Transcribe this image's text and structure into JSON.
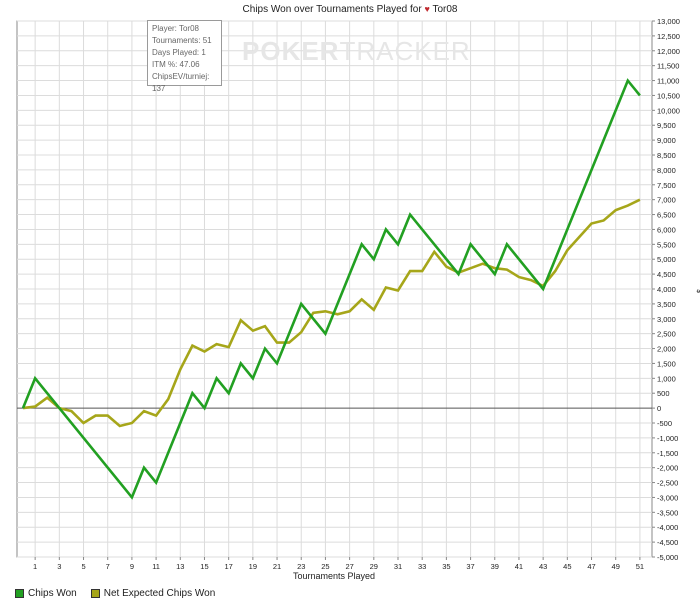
{
  "title": "Chips Won over Tournaments Played for",
  "title_player": "Tor08",
  "info_box": {
    "player": "Player: Tor08",
    "tournaments": "Tournaments: 51",
    "days_played": "Days Played: 1",
    "itm": "ITM %: 47.06",
    "chipsev": "ChipsEV/turniej: 137"
  },
  "watermark": {
    "part1": "POKER",
    "part2": "TRACKER"
  },
  "colors": {
    "chips_won": "#22a022",
    "net_expected": "#a6a61a",
    "grid": "#dcdcdc",
    "zero_line": "#555555"
  },
  "chart_data": {
    "type": "line",
    "xlabel": "Tournaments Played",
    "ylabel": "$",
    "xlim": [
      -0.5,
      52
    ],
    "ylim": [
      -5000,
      13000
    ],
    "x_ticks": [
      1,
      3,
      5,
      7,
      9,
      11,
      13,
      15,
      17,
      19,
      21,
      23,
      25,
      27,
      29,
      31,
      33,
      35,
      37,
      39,
      41,
      43,
      45,
      47,
      49,
      51
    ],
    "y_ticks": [
      -5000,
      -4500,
      -4000,
      -3500,
      -3000,
      -2500,
      -2000,
      -1500,
      -1000,
      -500,
      0,
      500,
      1000,
      1500,
      2000,
      2500,
      3000,
      3500,
      4000,
      4500,
      5000,
      5500,
      6000,
      6500,
      7000,
      7500,
      8000,
      8500,
      9000,
      9500,
      10000,
      10500,
      11000,
      11500,
      12000,
      12500,
      13000
    ],
    "y_tick_labels": [
      "-5,000",
      "-4,500",
      "-4,000",
      "-3,500",
      "-3,000",
      "-2,500",
      "-2,000",
      "-1,500",
      "-1,000",
      "-500",
      "0",
      "500",
      "1,000",
      "1,500",
      "2,000",
      "2,500",
      "3,000",
      "3,500",
      "4,000",
      "4,500",
      "5,000",
      "5,500",
      "6,000",
      "6,500",
      "7,000",
      "7,500",
      "8,000",
      "8,500",
      "9,000",
      "9,500",
      "10,000",
      "10,500",
      "11,000",
      "11,500",
      "12,000",
      "12,500",
      "13,000"
    ],
    "grid": true,
    "legend_position": "bottom-left",
    "series": [
      {
        "name": "Chips Won",
        "color": "#22a022",
        "points": [
          [
            0,
            0
          ],
          [
            1,
            1000
          ],
          [
            2,
            500
          ],
          [
            3,
            0
          ],
          [
            9,
            -3000
          ],
          [
            10,
            -2000
          ],
          [
            11,
            -2500
          ],
          [
            14,
            500
          ],
          [
            15,
            0
          ],
          [
            16,
            1000
          ],
          [
            17,
            500
          ],
          [
            18,
            1500
          ],
          [
            19,
            1000
          ],
          [
            20,
            2000
          ],
          [
            21,
            1500
          ],
          [
            23,
            3500
          ],
          [
            25,
            2500
          ],
          [
            28,
            5500
          ],
          [
            29,
            5000
          ],
          [
            30,
            6000
          ],
          [
            31,
            5500
          ],
          [
            32,
            6500
          ],
          [
            36,
            4500
          ],
          [
            37,
            5500
          ],
          [
            39,
            4500
          ],
          [
            40,
            5500
          ],
          [
            43,
            4000
          ],
          [
            50,
            11000
          ],
          [
            51,
            10500
          ]
        ]
      },
      {
        "name": "Net Expected Chips Won",
        "color": "#a6a61a",
        "points": [
          [
            0,
            0
          ],
          [
            1,
            50
          ],
          [
            2,
            350
          ],
          [
            3,
            0
          ],
          [
            4,
            -100
          ],
          [
            5,
            -500
          ],
          [
            6,
            -250
          ],
          [
            7,
            -250
          ],
          [
            8,
            -600
          ],
          [
            9,
            -500
          ],
          [
            10,
            -100
          ],
          [
            11,
            -250
          ],
          [
            12,
            300
          ],
          [
            13,
            1300
          ],
          [
            14,
            2100
          ],
          [
            15,
            1900
          ],
          [
            16,
            2150
          ],
          [
            17,
            2050
          ],
          [
            18,
            2950
          ],
          [
            19,
            2600
          ],
          [
            20,
            2750
          ],
          [
            21,
            2200
          ],
          [
            22,
            2200
          ],
          [
            23,
            2550
          ],
          [
            24,
            3200
          ],
          [
            25,
            3250
          ],
          [
            26,
            3150
          ],
          [
            27,
            3250
          ],
          [
            28,
            3650
          ],
          [
            29,
            3300
          ],
          [
            30,
            4050
          ],
          [
            31,
            3950
          ],
          [
            32,
            4600
          ],
          [
            33,
            4600
          ],
          [
            34,
            5250
          ],
          [
            35,
            4750
          ],
          [
            36,
            4550
          ],
          [
            37,
            4700
          ],
          [
            38,
            4850
          ],
          [
            39,
            4700
          ],
          [
            40,
            4650
          ],
          [
            41,
            4400
          ],
          [
            42,
            4300
          ],
          [
            43,
            4100
          ],
          [
            44,
            4600
          ],
          [
            45,
            5300
          ],
          [
            46,
            5750
          ],
          [
            47,
            6200
          ],
          [
            48,
            6300
          ],
          [
            49,
            6650
          ],
          [
            50,
            6800
          ],
          [
            51,
            7000
          ]
        ]
      }
    ]
  }
}
